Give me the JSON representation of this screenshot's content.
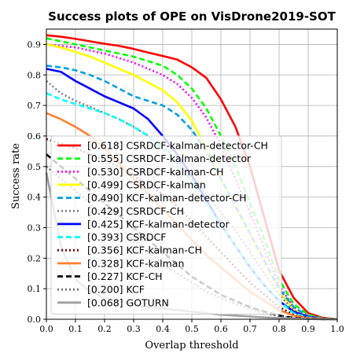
{
  "chart_data": {
    "type": "line",
    "title": "Success plots of OPE on VisDrone2019-SOT",
    "xlabel": "Overlap threshold",
    "ylabel": "Success rate",
    "xlim": [
      0,
      1
    ],
    "ylim": [
      0,
      0.95
    ],
    "xticks": [
      "0.0",
      "0.1",
      "0.2",
      "0.3",
      "0.4",
      "0.5",
      "0.6",
      "0.7",
      "0.8",
      "0.9",
      "1.0"
    ],
    "yticks": [
      "0.0",
      "0.1",
      "0.2",
      "0.3",
      "0.4",
      "0.5",
      "0.6",
      "0.7",
      "0.8",
      "0.9"
    ],
    "grid": true,
    "legend_position": "lower-left",
    "x": [
      0,
      0.05,
      0.1,
      0.15,
      0.2,
      0.25,
      0.3,
      0.35,
      0.4,
      0.45,
      0.5,
      0.55,
      0.6,
      0.65,
      0.7,
      0.75,
      0.8,
      0.85,
      0.9,
      0.95,
      1.0
    ],
    "series": [
      {
        "name": "[0.618] CSRDCF-kalman-detector-CH",
        "color": "#ff0000",
        "dash": "solid",
        "values": [
          0.93,
          0.925,
          0.918,
          0.91,
          0.902,
          0.895,
          0.885,
          0.873,
          0.862,
          0.85,
          0.825,
          0.79,
          0.72,
          0.63,
          0.5,
          0.33,
          0.16,
          0.07,
          0.02,
          0.005,
          0.0
        ]
      },
      {
        "name": "[0.555] CSRDCF-kalman-detector",
        "color": "#00ff00",
        "dash": "dashed",
        "values": [
          0.92,
          0.91,
          0.9,
          0.89,
          0.88,
          0.87,
          0.86,
          0.845,
          0.83,
          0.8,
          0.755,
          0.69,
          0.6,
          0.5,
          0.38,
          0.26,
          0.13,
          0.05,
          0.015,
          0.003,
          0.0
        ]
      },
      {
        "name": "[0.530] CSRDCF-kalman-CH",
        "color": "#ff00ff",
        "dash": "dotted",
        "values": [
          0.9,
          0.895,
          0.89,
          0.88,
          0.87,
          0.855,
          0.84,
          0.82,
          0.8,
          0.77,
          0.725,
          0.66,
          0.57,
          0.46,
          0.35,
          0.23,
          0.11,
          0.04,
          0.01,
          0.002,
          0.0
        ]
      },
      {
        "name": "[0.499] CSRDCF-kalman",
        "color": "#ffff00",
        "dash": "solid",
        "values": [
          0.9,
          0.89,
          0.875,
          0.86,
          0.84,
          0.82,
          0.8,
          0.775,
          0.75,
          0.71,
          0.65,
          0.56,
          0.46,
          0.37,
          0.28,
          0.19,
          0.09,
          0.03,
          0.008,
          0.001,
          0.0
        ]
      },
      {
        "name": "[0.490] KCF-kalman-detector-CH",
        "color": "#00a0e0",
        "dash": "dashed",
        "values": [
          0.83,
          0.825,
          0.815,
          0.8,
          0.78,
          0.755,
          0.73,
          0.715,
          0.7,
          0.67,
          0.62,
          0.55,
          0.46,
          0.37,
          0.28,
          0.19,
          0.1,
          0.04,
          0.01,
          0.002,
          0.0
        ]
      },
      {
        "name": "[0.429] CSRDCF-CH",
        "color": "#808080",
        "dash": "dotted",
        "values": [
          0.78,
          0.74,
          0.715,
          0.695,
          0.675,
          0.655,
          0.63,
          0.6,
          0.565,
          0.52,
          0.47,
          0.41,
          0.35,
          0.29,
          0.22,
          0.15,
          0.08,
          0.03,
          0.008,
          0.001,
          0.0
        ]
      },
      {
        "name": "[0.425] KCF-kalman-detector",
        "color": "#0000ff",
        "dash": "solid",
        "values": [
          0.82,
          0.81,
          0.78,
          0.755,
          0.73,
          0.71,
          0.69,
          0.655,
          0.6,
          0.54,
          0.47,
          0.39,
          0.31,
          0.24,
          0.17,
          0.11,
          0.06,
          0.025,
          0.008,
          0.001,
          0.0
        ]
      },
      {
        "name": "[0.393] CSRDCF",
        "color": "#00ffff",
        "dash": "dashed",
        "values": [
          0.74,
          0.72,
          0.705,
          0.69,
          0.675,
          0.655,
          0.63,
          0.6,
          0.56,
          0.51,
          0.45,
          0.38,
          0.31,
          0.24,
          0.17,
          0.11,
          0.06,
          0.02,
          0.006,
          0.001,
          0.0
        ]
      },
      {
        "name": "[0.356] KCF-kalman-CH",
        "color": "#800000",
        "dash": "dotted",
        "values": [
          0.59,
          0.575,
          0.56,
          0.54,
          0.52,
          0.5,
          0.47,
          0.44,
          0.41,
          0.37,
          0.32,
          0.27,
          0.22,
          0.17,
          0.12,
          0.08,
          0.04,
          0.015,
          0.004,
          0.001,
          0.0
        ]
      },
      {
        "name": "[0.328] KCF-kalman",
        "color": "#ff8030",
        "dash": "solid",
        "values": [
          0.675,
          0.655,
          0.63,
          0.6,
          0.56,
          0.51,
          0.46,
          0.41,
          0.36,
          0.31,
          0.26,
          0.21,
          0.17,
          0.13,
          0.09,
          0.06,
          0.03,
          0.012,
          0.004,
          0.001,
          0.0
        ]
      },
      {
        "name": "[0.227] KCF-CH",
        "color": "#000000",
        "dash": "dashed",
        "values": [
          0.54,
          0.5,
          0.46,
          0.42,
          0.38,
          0.34,
          0.3,
          0.26,
          0.22,
          0.18,
          0.14,
          0.11,
          0.08,
          0.06,
          0.04,
          0.025,
          0.012,
          0.005,
          0.002,
          0.0,
          0.0
        ]
      },
      {
        "name": "[0.200] KCF",
        "color": "#707070",
        "dash": "dotted",
        "values": [
          0.5,
          0.46,
          0.42,
          0.38,
          0.34,
          0.3,
          0.26,
          0.22,
          0.18,
          0.15,
          0.12,
          0.09,
          0.07,
          0.05,
          0.035,
          0.02,
          0.01,
          0.004,
          0.001,
          0.0,
          0.0
        ]
      },
      {
        "name": "[0.068] GOTURN",
        "color": "#a0a0a0",
        "dash": "solid",
        "values": [
          0.48,
          0.24,
          0.13,
          0.09,
          0.07,
          0.06,
          0.05,
          0.04,
          0.035,
          0.03,
          0.025,
          0.02,
          0.015,
          0.012,
          0.009,
          0.006,
          0.004,
          0.002,
          0.001,
          0.0,
          0.0
        ]
      }
    ]
  }
}
